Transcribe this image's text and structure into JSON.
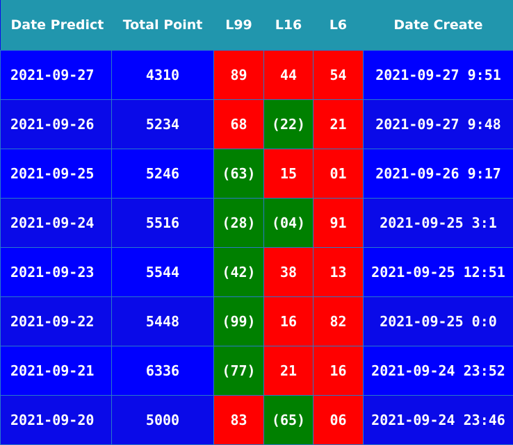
{
  "header": {
    "date_predict": "Date Predict",
    "total_point": "Total Point",
    "l99": "L99",
    "l16": "L16",
    "l6": "L6",
    "date_create": "Date Create"
  },
  "colors": {
    "header": "#2196ad",
    "row_a": "#0000ff",
    "row_b": "#0a0ae8",
    "red": "#ff0000",
    "green": "#008000"
  },
  "rows": [
    {
      "date_predict": "2021-09-27",
      "total_point": "4310",
      "l99": "89",
      "l99_color": "red",
      "l16": "44",
      "l16_color": "red",
      "l6": "54",
      "l6_color": "red",
      "date_create": "2021-09-27 9:51"
    },
    {
      "date_predict": "2021-09-26",
      "total_point": "5234",
      "l99": "68",
      "l99_color": "red",
      "l16": "(22)",
      "l16_color": "green",
      "l6": "21",
      "l6_color": "red",
      "date_create": "2021-09-27 9:48"
    },
    {
      "date_predict": "2021-09-25",
      "total_point": "5246",
      "l99": "(63)",
      "l99_color": "green",
      "l16": "15",
      "l16_color": "red",
      "l6": "01",
      "l6_color": "red",
      "date_create": "2021-09-26 9:17"
    },
    {
      "date_predict": "2021-09-24",
      "total_point": "5516",
      "l99": "(28)",
      "l99_color": "green",
      "l16": "(04)",
      "l16_color": "green",
      "l6": "91",
      "l6_color": "red",
      "date_create": "2021-09-25 3:1"
    },
    {
      "date_predict": "2021-09-23",
      "total_point": "5544",
      "l99": "(42)",
      "l99_color": "green",
      "l16": "38",
      "l16_color": "red",
      "l6": "13",
      "l6_color": "red",
      "date_create": "2021-09-25 12:51"
    },
    {
      "date_predict": "2021-09-22",
      "total_point": "5448",
      "l99": "(99)",
      "l99_color": "green",
      "l16": "16",
      "l16_color": "red",
      "l6": "82",
      "l6_color": "red",
      "date_create": "2021-09-25 0:0"
    },
    {
      "date_predict": "2021-09-21",
      "total_point": "6336",
      "l99": "(77)",
      "l99_color": "green",
      "l16": "21",
      "l16_color": "red",
      "l6": "16",
      "l6_color": "red",
      "date_create": "2021-09-24 23:52"
    },
    {
      "date_predict": "2021-09-20",
      "total_point": "5000",
      "l99": "83",
      "l99_color": "red",
      "l16": "(65)",
      "l16_color": "green",
      "l6": "06",
      "l6_color": "red",
      "date_create": "2021-09-24 23:46"
    }
  ]
}
